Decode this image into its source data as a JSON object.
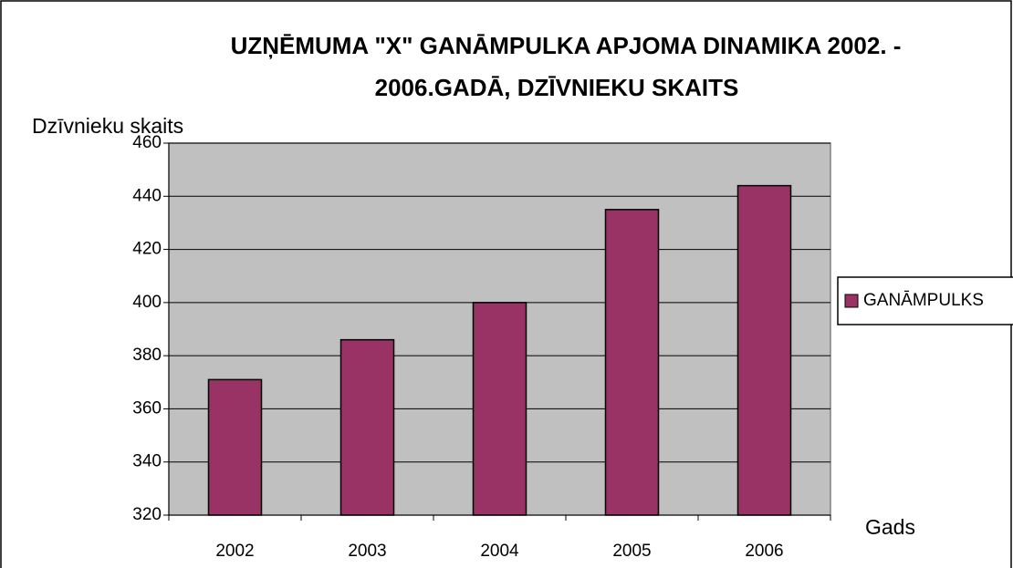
{
  "chart_data": {
    "type": "bar",
    "title": [
      "UZŅĒMUMA \"X\" GANĀMPULKA APJOMA DINAMIKA 2002. -",
      "2006.GADĀ, DZĪVNIEKU SKAITS"
    ],
    "y_label": "Dzīvnieku skaits",
    "x_label": "Gads",
    "categories": [
      "2002",
      "2003",
      "2004",
      "2005",
      "2006"
    ],
    "series": [
      {
        "name": "GANĀMPULKS",
        "color": "#993366",
        "values": [
          371,
          386,
          400,
          435,
          444
        ]
      }
    ],
    "ylim": [
      320,
      460
    ],
    "yticks": [
      320,
      340,
      360,
      380,
      400,
      420,
      440,
      460
    ],
    "grid": true,
    "legend": "right"
  }
}
